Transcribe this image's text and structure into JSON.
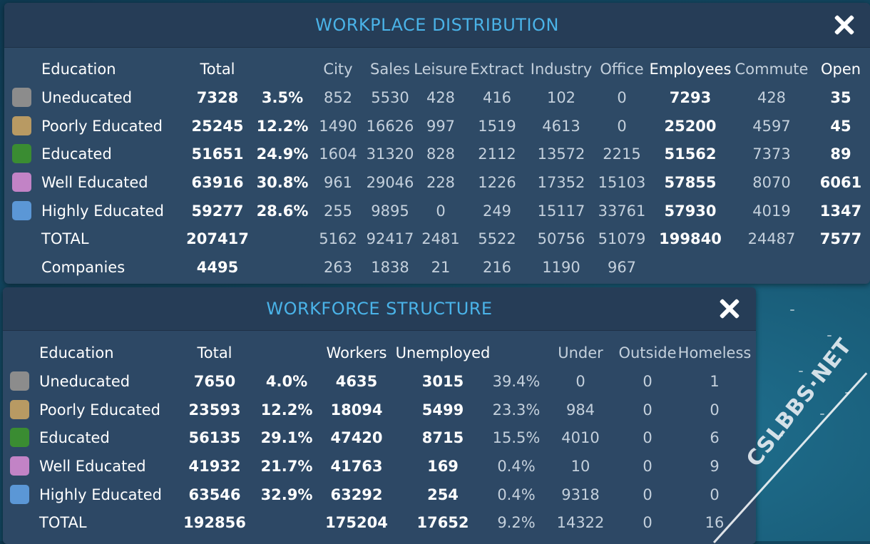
{
  "workplace": {
    "title": "WORKPLACE DISTRIBUTION",
    "headers": [
      "Education",
      "Total",
      "City",
      "Sales",
      "Leisure",
      "Extract",
      "Industry",
      "Office",
      "Employees",
      "Commute",
      "Open"
    ],
    "rows": [
      {
        "name": "Uneducated",
        "color": "#8c8c8c",
        "total": "7328",
        "pct": "3.5%",
        "city": "852",
        "sales": "5530",
        "leisure": "428",
        "extract": "416",
        "industry": "102",
        "office": "0",
        "employees": "7293",
        "commute": "428",
        "open": "35"
      },
      {
        "name": "Poorly Educated",
        "color": "#b89a63",
        "total": "25245",
        "pct": "12.2%",
        "city": "1490",
        "sales": "16626",
        "leisure": "997",
        "extract": "1519",
        "industry": "4613",
        "office": "0",
        "employees": "25200",
        "commute": "4597",
        "open": "45"
      },
      {
        "name": "Educated",
        "color": "#3a8c32",
        "total": "51651",
        "pct": "24.9%",
        "city": "1604",
        "sales": "31320",
        "leisure": "828",
        "extract": "2112",
        "industry": "13572",
        "office": "2215",
        "employees": "51562",
        "commute": "7373",
        "open": "89"
      },
      {
        "name": "Well Educated",
        "color": "#c283c6",
        "total": "63916",
        "pct": "30.8%",
        "city": "961",
        "sales": "29046",
        "leisure": "228",
        "extract": "1226",
        "industry": "17352",
        "office": "15103",
        "employees": "57855",
        "commute": "8070",
        "open": "6061"
      },
      {
        "name": "Highly Educated",
        "color": "#5b97d6",
        "total": "59277",
        "pct": "28.6%",
        "city": "255",
        "sales": "9895",
        "leisure": "0",
        "extract": "249",
        "industry": "15117",
        "office": "33761",
        "employees": "57930",
        "commute": "4019",
        "open": "1347"
      }
    ],
    "total": {
      "name": "TOTAL",
      "total": "207417",
      "city": "5162",
      "sales": "92417",
      "leisure": "2481",
      "extract": "5522",
      "industry": "50756",
      "office": "51079",
      "employees": "199840",
      "commute": "24487",
      "open": "7577"
    },
    "companies": {
      "name": "Companies",
      "total": "4495",
      "city": "263",
      "sales": "1838",
      "leisure": "21",
      "extract": "216",
      "industry": "1190",
      "office": "967"
    }
  },
  "workforce": {
    "title": "WORKFORCE STRUCTURE",
    "headers": [
      "Education",
      "Total",
      "Workers",
      "Unemployed",
      "Under",
      "Outside",
      "Homeless"
    ],
    "rows": [
      {
        "name": "Uneducated",
        "color": "#8c8c8c",
        "total": "7650",
        "pct": "4.0%",
        "workers": "4635",
        "unemployed": "3015",
        "upct": "39.4%",
        "under": "0",
        "outside": "0",
        "homeless": "1"
      },
      {
        "name": "Poorly Educated",
        "color": "#b89a63",
        "total": "23593",
        "pct": "12.2%",
        "workers": "18094",
        "unemployed": "5499",
        "upct": "23.3%",
        "under": "984",
        "outside": "0",
        "homeless": "0"
      },
      {
        "name": "Educated",
        "color": "#3a8c32",
        "total": "56135",
        "pct": "29.1%",
        "workers": "47420",
        "unemployed": "8715",
        "upct": "15.5%",
        "under": "4010",
        "outside": "0",
        "homeless": "6"
      },
      {
        "name": "Well Educated",
        "color": "#c283c6",
        "total": "41932",
        "pct": "21.7%",
        "workers": "41763",
        "unemployed": "169",
        "upct": "0.4%",
        "under": "10",
        "outside": "0",
        "homeless": "9"
      },
      {
        "name": "Highly Educated",
        "color": "#5b97d6",
        "total": "63546",
        "pct": "32.9%",
        "workers": "63292",
        "unemployed": "254",
        "upct": "0.4%",
        "under": "9318",
        "outside": "0",
        "homeless": "0"
      }
    ],
    "total": {
      "name": "TOTAL",
      "total": "192856",
      "workers": "175204",
      "unemployed": "17652",
      "upct": "9.2%",
      "under": "14322",
      "outside": "0",
      "homeless": "16"
    }
  },
  "watermark": "CSLBBS·NET"
}
